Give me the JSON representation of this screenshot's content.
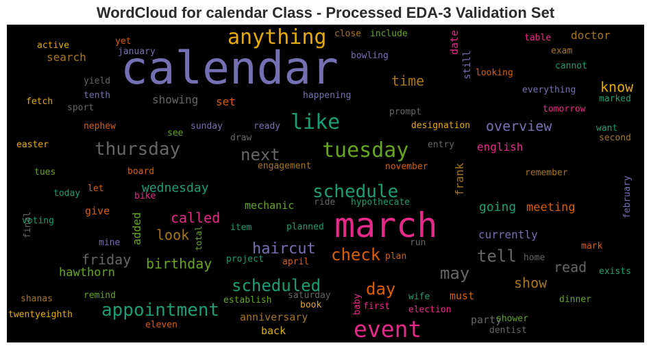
{
  "chart_data": {
    "type": "wordcloud",
    "title": "WordCloud for calendar Class - Processed EDA-3 Validation Set",
    "background": "#000000",
    "palette": {
      "purple": "#7570b3",
      "pink": "#e7298a",
      "teal": "#1b9e77",
      "orange": "#d95f02",
      "gold": "#e6ab02",
      "brown": "#a6761d",
      "green": "#66a61e",
      "gray": "#666666"
    },
    "words": [
      {
        "text": "calendar",
        "color": "purple",
        "rotation": 0
      },
      {
        "text": "march",
        "color": "pink",
        "rotation": 0
      },
      {
        "text": "event",
        "color": "pink",
        "rotation": 0
      },
      {
        "text": "anything",
        "color": "gold",
        "rotation": 0
      },
      {
        "text": "tuesday",
        "color": "green",
        "rotation": 0
      },
      {
        "text": "like",
        "color": "teal",
        "rotation": 0
      },
      {
        "text": "thursday",
        "color": "gray",
        "rotation": 0
      },
      {
        "text": "schedule",
        "color": "teal",
        "rotation": 0
      },
      {
        "text": "appointment",
        "color": "teal",
        "rotation": 0
      },
      {
        "text": "scheduled",
        "color": "teal",
        "rotation": 0
      },
      {
        "text": "check",
        "color": "orange",
        "rotation": 0
      },
      {
        "text": "next",
        "color": "gray",
        "rotation": 0
      },
      {
        "text": "day",
        "color": "orange",
        "rotation": 0
      },
      {
        "text": "may",
        "color": "gray",
        "rotation": 0
      },
      {
        "text": "tell",
        "color": "gray",
        "rotation": 0
      },
      {
        "text": "haircut",
        "color": "purple",
        "rotation": 0
      },
      {
        "text": "birthday",
        "color": "green",
        "rotation": 0
      },
      {
        "text": "friday",
        "color": "gray",
        "rotation": 0
      },
      {
        "text": "overview",
        "color": "purple",
        "rotation": 0
      },
      {
        "text": "look",
        "color": "brown",
        "rotation": 0
      },
      {
        "text": "called",
        "color": "pink",
        "rotation": 0
      },
      {
        "text": "wednesday",
        "color": "teal",
        "rotation": 0
      },
      {
        "text": "going",
        "color": "teal",
        "rotation": 0
      },
      {
        "text": "time",
        "color": "brown",
        "rotation": 0
      },
      {
        "text": "know",
        "color": "gold",
        "rotation": 0
      },
      {
        "text": "read",
        "color": "gray",
        "rotation": 0
      },
      {
        "text": "show",
        "color": "brown",
        "rotation": 0
      },
      {
        "text": "meeting",
        "color": "orange",
        "rotation": 0
      },
      {
        "text": "hawthorn",
        "color": "green",
        "rotation": 0
      },
      {
        "text": "currently",
        "color": "purple",
        "rotation": 0
      },
      {
        "text": "doctor",
        "color": "brown",
        "rotation": 0
      },
      {
        "text": "search",
        "color": "brown",
        "rotation": 0
      },
      {
        "text": "showing",
        "color": "gray",
        "rotation": 0
      },
      {
        "text": "english",
        "color": "pink",
        "rotation": 0
      },
      {
        "text": "mechanic",
        "color": "green",
        "rotation": 0
      },
      {
        "text": "give",
        "color": "orange",
        "rotation": 0
      },
      {
        "text": "anniversary",
        "color": "brown",
        "rotation": 0
      },
      {
        "text": "party",
        "color": "gray",
        "rotation": 0
      },
      {
        "text": "must",
        "color": "orange",
        "rotation": 0
      },
      {
        "text": "back",
        "color": "gold",
        "rotation": 0
      },
      {
        "text": "set",
        "color": "orange",
        "rotation": 0
      },
      {
        "text": "added",
        "color": "green",
        "rotation": -90
      },
      {
        "text": "frank",
        "color": "brown",
        "rotation": -90
      },
      {
        "text": "date",
        "color": "pink",
        "rotation": -90
      },
      {
        "text": "still",
        "color": "purple",
        "rotation": -90
      },
      {
        "text": "february",
        "color": "purple",
        "rotation": -90
      },
      {
        "text": "total",
        "color": "green",
        "rotation": -90
      },
      {
        "text": "final",
        "color": "gray",
        "rotation": -90
      },
      {
        "text": "baby",
        "color": "pink",
        "rotation": -90
      },
      {
        "text": "active",
        "color": "gold",
        "rotation": 0
      },
      {
        "text": "yet",
        "color": "orange",
        "rotation": 0
      },
      {
        "text": "january",
        "color": "purple",
        "rotation": 0
      },
      {
        "text": "close",
        "color": "brown",
        "rotation": 0
      },
      {
        "text": "include",
        "color": "green",
        "rotation": 0
      },
      {
        "text": "table",
        "color": "pink",
        "rotation": 0
      },
      {
        "text": "exam",
        "color": "brown",
        "rotation": 0
      },
      {
        "text": "bowling",
        "color": "purple",
        "rotation": 0
      },
      {
        "text": "cannot",
        "color": "teal",
        "rotation": 0
      },
      {
        "text": "looking",
        "color": "orange",
        "rotation": 0
      },
      {
        "text": "yield",
        "color": "gray",
        "rotation": 0
      },
      {
        "text": "tenth",
        "color": "purple",
        "rotation": 0
      },
      {
        "text": "fetch",
        "color": "gold",
        "rotation": 0
      },
      {
        "text": "sport",
        "color": "gray",
        "rotation": 0
      },
      {
        "text": "happening",
        "color": "purple",
        "rotation": 0
      },
      {
        "text": "everything",
        "color": "purple",
        "rotation": 0
      },
      {
        "text": "marked",
        "color": "teal",
        "rotation": 0
      },
      {
        "text": "tomorrow",
        "color": "pink",
        "rotation": 0
      },
      {
        "text": "prompt",
        "color": "gray",
        "rotation": 0
      },
      {
        "text": "nephew",
        "color": "orange",
        "rotation": 0
      },
      {
        "text": "sunday",
        "color": "purple",
        "rotation": 0
      },
      {
        "text": "ready",
        "color": "purple",
        "rotation": 0
      },
      {
        "text": "designation",
        "color": "gold",
        "rotation": 0
      },
      {
        "text": "want",
        "color": "teal",
        "rotation": 0
      },
      {
        "text": "see",
        "color": "green",
        "rotation": 0
      },
      {
        "text": "draw",
        "color": "gray",
        "rotation": 0
      },
      {
        "text": "second",
        "color": "brown",
        "rotation": 0
      },
      {
        "text": "easter",
        "color": "gold",
        "rotation": 0
      },
      {
        "text": "entry",
        "color": "gray",
        "rotation": 0
      },
      {
        "text": "tues",
        "color": "green",
        "rotation": 0
      },
      {
        "text": "board",
        "color": "orange",
        "rotation": 0
      },
      {
        "text": "engagement",
        "color": "brown",
        "rotation": 0
      },
      {
        "text": "november",
        "color": "orange",
        "rotation": 0
      },
      {
        "text": "remember",
        "color": "brown",
        "rotation": 0
      },
      {
        "text": "today",
        "color": "teal",
        "rotation": 0
      },
      {
        "text": "let",
        "color": "orange",
        "rotation": 0
      },
      {
        "text": "bike",
        "color": "pink",
        "rotation": 0
      },
      {
        "text": "ride",
        "color": "gray",
        "rotation": 0
      },
      {
        "text": "hypothecate",
        "color": "teal",
        "rotation": 0
      },
      {
        "text": "voting",
        "color": "teal",
        "rotation": 0
      },
      {
        "text": "item",
        "color": "teal",
        "rotation": 0
      },
      {
        "text": "planned",
        "color": "teal",
        "rotation": 0
      },
      {
        "text": "mine",
        "color": "purple",
        "rotation": 0
      },
      {
        "text": "run",
        "color": "gray",
        "rotation": 0
      },
      {
        "text": "mark",
        "color": "orange",
        "rotation": 0
      },
      {
        "text": "project",
        "color": "teal",
        "rotation": 0
      },
      {
        "text": "april",
        "color": "orange",
        "rotation": 0
      },
      {
        "text": "plan",
        "color": "orange",
        "rotation": 0
      },
      {
        "text": "home",
        "color": "gray",
        "rotation": 0
      },
      {
        "text": "exists",
        "color": "teal",
        "rotation": 0
      },
      {
        "text": "shanas",
        "color": "brown",
        "rotation": 0
      },
      {
        "text": "remind",
        "color": "green",
        "rotation": 0
      },
      {
        "text": "establish",
        "color": "green",
        "rotation": 0
      },
      {
        "text": "saturday",
        "color": "gray",
        "rotation": 0
      },
      {
        "text": "book",
        "color": "gold",
        "rotation": 0
      },
      {
        "text": "wife",
        "color": "teal",
        "rotation": 0
      },
      {
        "text": "dinner",
        "color": "green",
        "rotation": 0
      },
      {
        "text": "twentyeighth",
        "color": "gold",
        "rotation": 0
      },
      {
        "text": "first",
        "color": "pink",
        "rotation": 0
      },
      {
        "text": "election",
        "color": "pink",
        "rotation": 0
      },
      {
        "text": "shower",
        "color": "green",
        "rotation": 0
      },
      {
        "text": "eleven",
        "color": "orange",
        "rotation": 0
      },
      {
        "text": "dentist",
        "color": "gray",
        "rotation": 0
      }
    ]
  }
}
